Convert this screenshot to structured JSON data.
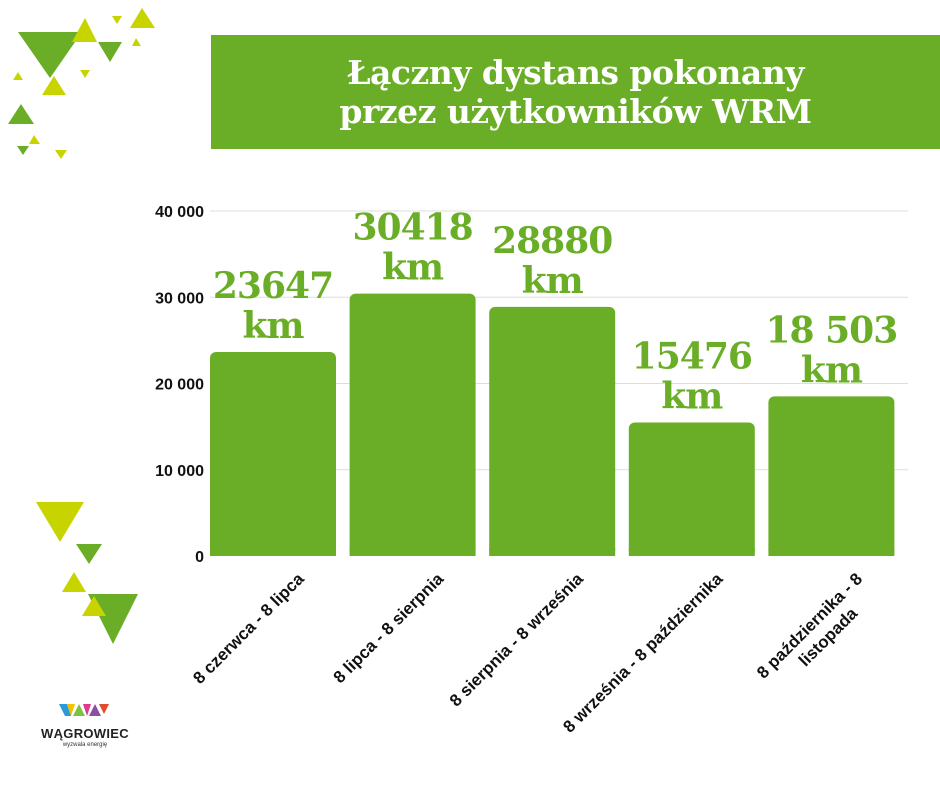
{
  "header": {
    "title_line1": "Łączny dystans pokonany",
    "title_line2": "przez użytkowników WRM"
  },
  "logo": {
    "name": "WĄGROWIEC",
    "tagline": "wyzwala energię"
  },
  "colors": {
    "accent_green": "#6aae27",
    "lime": "#c8d400",
    "text_dark": "#111111"
  },
  "chart_data": {
    "type": "bar",
    "categories": [
      "8 czerwca - 8 lipca",
      "8 lipca - 8 sierpnia",
      "8 sierpnia - 8 września",
      "8 września - 8 października",
      "8 października - 8 listopada"
    ],
    "category_lines": [
      [
        "8 czerwca - 8 lipca"
      ],
      [
        "8 lipca - 8 sierpnia"
      ],
      [
        "8 sierpnia - 8 września"
      ],
      [
        "8 września - 8 października"
      ],
      [
        "8 października - 8",
        "listopada"
      ]
    ],
    "values": [
      23647,
      30418,
      28880,
      15476,
      18503
    ],
    "data_labels": [
      [
        "23647",
        "km"
      ],
      [
        "30418",
        "km"
      ],
      [
        "28880",
        "km"
      ],
      [
        "15476",
        "km"
      ],
      [
        "18 503",
        "km"
      ]
    ],
    "ylim": [
      0,
      40000
    ],
    "yticks": [
      0,
      10000,
      20000,
      30000,
      40000
    ],
    "ytick_labels": [
      "0",
      "10 000",
      "20 000",
      "30 000",
      "40 000"
    ],
    "grid": true,
    "bar_color": "#6aae27",
    "label_color": "#6aae27"
  }
}
